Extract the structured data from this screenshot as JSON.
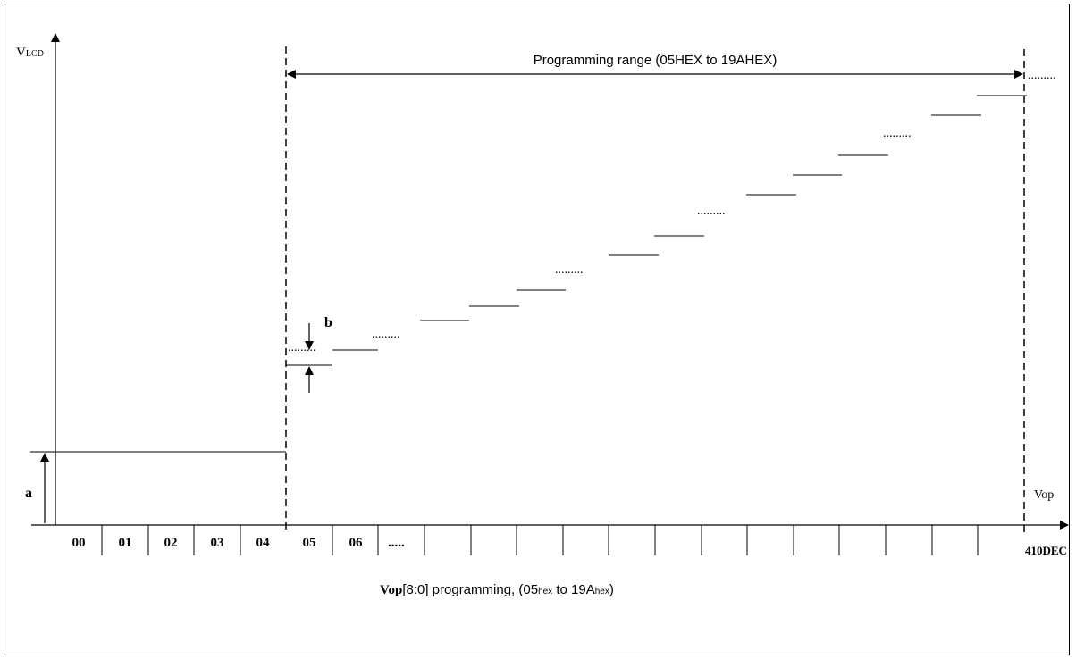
{
  "diagram": {
    "y_axis_label_main": "V",
    "y_axis_label_sub": "LCD",
    "x_axis_label": "Vop",
    "label_a": "a",
    "label_b": "b",
    "range_label": "Programming range (05HEX to 19AHEX)",
    "tick_labels": [
      "00",
      "01",
      "02",
      "03",
      "04",
      "05",
      "06",
      "....."
    ],
    "end_tick_label": "410DEC",
    "caption_bold": "Vop",
    "caption_mid": "[8:0] programming, (05",
    "caption_hex1": "hex",
    "caption_to": " to 19A",
    "caption_hex2": "hex",
    "caption_end": ")",
    "dots_text": "........."
  }
}
